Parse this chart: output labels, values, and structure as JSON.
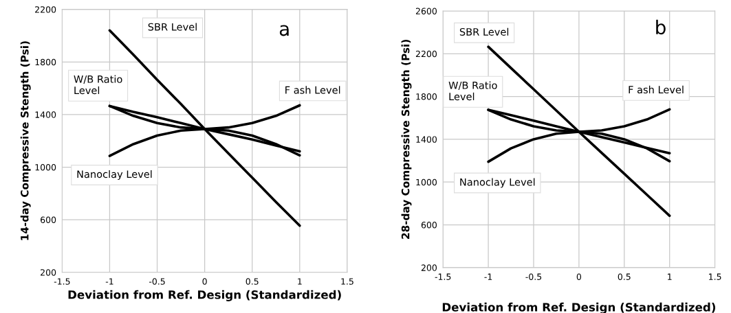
{
  "chart_data": [
    {
      "type": "line",
      "xlabel": "Deviation from Ref. Design (Standardized)",
      "ylabel": "14-day Compressive Stength (Psi)",
      "annotations": [
        "a"
      ],
      "x": [
        -1,
        -0.75,
        -0.5,
        -0.25,
        0,
        0.25,
        0.5,
        0.75,
        1
      ],
      "series": [
        {
          "name": "SBR Level",
          "color": "#000000",
          "values": [
            2040,
            1855,
            1665,
            1480,
            1290,
            1105,
            920,
            735,
            555
          ]
        },
        {
          "name": "W/B Ratio\nLevel",
          "color": "#000000",
          "values": [
            1465,
            1420,
            1380,
            1335,
            1290,
            1250,
            1210,
            1165,
            1120
          ]
        },
        {
          "name": "F ash Level",
          "color": "#000000",
          "values": [
            1465,
            1390,
            1335,
            1302,
            1290,
            1302,
            1335,
            1390,
            1470
          ]
        },
        {
          "name": "Nanoclay Level",
          "color": "#000000",
          "values": [
            1085,
            1175,
            1240,
            1278,
            1290,
            1278,
            1240,
            1175,
            1090
          ]
        }
      ],
      "xlim": [
        -1.5,
        1.5
      ],
      "xticks": [
        -1.5,
        -1,
        -0.5,
        0,
        0.5,
        1,
        1.5
      ],
      "ylim": [
        200,
        2200
      ],
      "yticks": [
        200,
        600,
        1000,
        1400,
        1800,
        2200
      ],
      "grid": true,
      "marker": "none",
      "line_style": "solid"
    },
    {
      "type": "line",
      "xlabel": "Deviation from Ref. Design (Standardized)",
      "ylabel": "28-day Compressive Stength (Psi)",
      "annotations": [
        "b"
      ],
      "x": [
        -1,
        -0.75,
        -0.5,
        -0.25,
        0,
        0.25,
        0.5,
        0.75,
        1
      ],
      "series": [
        {
          "name": "SBR Level",
          "color": "#000000",
          "values": [
            2265,
            2066,
            1868,
            1669,
            1470,
            1274,
            1078,
            881,
            685
          ]
        },
        {
          "name": "W/B Ratio\nLevel",
          "color": "#000000",
          "values": [
            1675,
            1625,
            1575,
            1522,
            1470,
            1420,
            1370,
            1320,
            1270
          ]
        },
        {
          "name": "F ash Level",
          "color": "#000000",
          "values": [
            1675,
            1585,
            1522,
            1483,
            1470,
            1483,
            1522,
            1585,
            1680
          ]
        },
        {
          "name": "Nanoclay Level",
          "color": "#000000",
          "values": [
            1190,
            1315,
            1400,
            1452,
            1470,
            1452,
            1400,
            1315,
            1195
          ]
        }
      ],
      "xlim": [
        -1.5,
        1.5
      ],
      "xticks": [
        -1.5,
        -1,
        -0.5,
        0,
        0.5,
        1,
        1.5
      ],
      "ylim": [
        200,
        2600
      ],
      "yticks": [
        200,
        600,
        1000,
        1400,
        1800,
        2200,
        2600
      ],
      "grid": true,
      "marker": "none",
      "line_style": "solid"
    }
  ]
}
